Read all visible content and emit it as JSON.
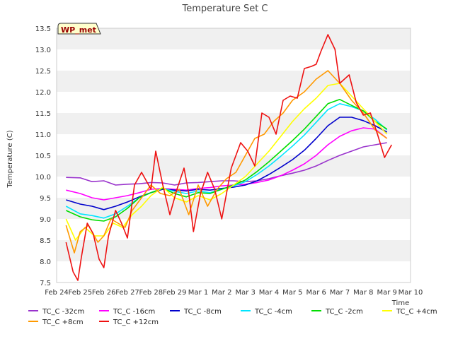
{
  "chart_data": {
    "type": "line",
    "title": "Temperature Set C",
    "xlabel": "Time",
    "ylabel": "Temperature (C)",
    "ylim": [
      7.5,
      13.5
    ],
    "yticks": [
      7.5,
      8.0,
      8.5,
      9.0,
      9.5,
      10.0,
      10.5,
      11.0,
      11.5,
      12.0,
      12.5,
      13.0,
      13.5
    ],
    "xlim": [
      0,
      15
    ],
    "xticks": [
      {
        "x": 0,
        "label": "Feb 24"
      },
      {
        "x": 1,
        "label": "Feb 25"
      },
      {
        "x": 2,
        "label": "Feb 26"
      },
      {
        "x": 3,
        "label": "Feb 27"
      },
      {
        "x": 4,
        "label": "Feb 28"
      },
      {
        "x": 5,
        "label": "Feb 29"
      },
      {
        "x": 6,
        "label": "Mar 1"
      },
      {
        "x": 7,
        "label": "Mar 2"
      },
      {
        "x": 8,
        "label": "Mar 3"
      },
      {
        "x": 9,
        "label": "Mar 4"
      },
      {
        "x": 10,
        "label": "Mar 5"
      },
      {
        "x": 11,
        "label": "Mar 6"
      },
      {
        "x": 12,
        "label": "Mar 7"
      },
      {
        "x": 13,
        "label": "Mar 8"
      },
      {
        "x": 14,
        "label": "Mar 9"
      },
      {
        "x": 15,
        "label": "Mar 10"
      }
    ],
    "annotation": "WP_met",
    "grid": "horizontal bands",
    "legend_position": "bottom",
    "series": [
      {
        "name": "TC_C -32cm",
        "color": "#9933cc",
        "x": [
          0.4,
          1.0,
          1.5,
          2.0,
          2.5,
          3.0,
          3.5,
          4.0,
          4.5,
          5.0,
          5.5,
          6.0,
          6.5,
          7.0,
          7.5,
          8.0,
          8.5,
          9.0,
          9.5,
          10.0,
          10.5,
          11.0,
          11.5,
          12.0,
          12.5,
          13.0,
          13.5,
          14.0
        ],
        "y": [
          9.98,
          9.97,
          9.88,
          9.9,
          9.8,
          9.82,
          9.83,
          9.86,
          9.85,
          9.8,
          9.85,
          9.86,
          9.88,
          9.9,
          9.9,
          9.88,
          9.9,
          9.95,
          10.02,
          10.08,
          10.15,
          10.25,
          10.38,
          10.5,
          10.6,
          10.7,
          10.75,
          10.8
        ]
      },
      {
        "name": "TC_C -16cm",
        "color": "#ff00ff",
        "x": [
          0.4,
          1.0,
          1.5,
          2.0,
          2.5,
          3.0,
          3.5,
          4.0,
          4.5,
          5.0,
          5.5,
          6.0,
          6.5,
          7.0,
          7.5,
          8.0,
          8.5,
          9.0,
          9.5,
          10.0,
          10.5,
          11.0,
          11.5,
          12.0,
          12.5,
          13.0,
          13.5,
          14.0
        ],
        "y": [
          9.68,
          9.6,
          9.5,
          9.45,
          9.5,
          9.55,
          9.62,
          9.7,
          9.72,
          9.7,
          9.68,
          9.72,
          9.74,
          9.78,
          9.8,
          9.82,
          9.86,
          9.92,
          10.02,
          10.15,
          10.3,
          10.5,
          10.75,
          10.95,
          11.08,
          11.15,
          11.12,
          10.9
        ]
      },
      {
        "name": "TC_C -8cm",
        "color": "#0000cc",
        "x": [
          0.4,
          1.0,
          1.5,
          2.0,
          2.5,
          3.0,
          3.5,
          4.0,
          4.5,
          5.0,
          5.5,
          6.0,
          6.5,
          7.0,
          7.5,
          8.0,
          8.5,
          9.0,
          9.5,
          10.0,
          10.5,
          11.0,
          11.5,
          12.0,
          12.5,
          13.0,
          13.5,
          14.0
        ],
        "y": [
          9.45,
          9.35,
          9.3,
          9.22,
          9.3,
          9.4,
          9.52,
          9.62,
          9.7,
          9.68,
          9.66,
          9.7,
          9.68,
          9.72,
          9.75,
          9.8,
          9.9,
          10.05,
          10.22,
          10.4,
          10.62,
          10.9,
          11.2,
          11.4,
          11.4,
          11.32,
          11.2,
          11.05
        ]
      },
      {
        "name": "TC_C -4cm",
        "color": "#00e5ff",
        "x": [
          0.4,
          1.0,
          1.5,
          2.0,
          2.5,
          3.0,
          3.5,
          4.0,
          4.5,
          5.0,
          5.5,
          6.0,
          6.5,
          7.0,
          7.5,
          8.0,
          8.5,
          9.0,
          9.5,
          10.0,
          10.5,
          11.0,
          11.5,
          12.0,
          12.5,
          13.0,
          13.5,
          14.0
        ],
        "y": [
          9.3,
          9.12,
          9.08,
          9.02,
          9.12,
          9.3,
          9.5,
          9.62,
          9.72,
          9.65,
          9.6,
          9.66,
          9.62,
          9.7,
          9.78,
          9.88,
          10.05,
          10.25,
          10.48,
          10.72,
          10.98,
          11.28,
          11.58,
          11.72,
          11.65,
          11.55,
          11.35,
          11.1
        ]
      },
      {
        "name": "TC_C -2cm",
        "color": "#00dd00",
        "x": [
          0.4,
          1.0,
          1.5,
          2.0,
          2.5,
          3.0,
          3.5,
          4.0,
          4.5,
          5.0,
          5.5,
          6.0,
          6.5,
          7.0,
          7.5,
          8.0,
          8.5,
          9.0,
          9.5,
          10.0,
          10.5,
          11.0,
          11.5,
          12.0,
          12.5,
          13.0,
          13.5,
          14.0
        ],
        "y": [
          9.2,
          9.05,
          8.98,
          8.95,
          9.05,
          9.25,
          9.5,
          9.62,
          9.72,
          9.6,
          9.52,
          9.62,
          9.6,
          9.7,
          9.8,
          9.92,
          10.12,
          10.35,
          10.6,
          10.85,
          11.12,
          11.42,
          11.72,
          11.82,
          11.68,
          11.55,
          11.3,
          11.12
        ]
      },
      {
        "name": "TC_C +4cm",
        "color": "#ffff00",
        "x": [
          0.4,
          0.8,
          1.2,
          1.6,
          2.0,
          2.4,
          2.8,
          3.2,
          3.6,
          4.0,
          4.5,
          5.0,
          5.5,
          6.0,
          6.5,
          7.0,
          7.5,
          8.0,
          8.5,
          9.0,
          9.5,
          10.0,
          10.5,
          11.0,
          11.5,
          12.0,
          12.5,
          13.0,
          13.5,
          14.0
        ],
        "y": [
          9.0,
          8.5,
          8.8,
          8.6,
          8.6,
          8.9,
          8.8,
          9.1,
          9.3,
          9.55,
          9.75,
          9.5,
          9.4,
          9.55,
          9.45,
          9.6,
          9.8,
          10.0,
          10.3,
          10.6,
          10.95,
          11.3,
          11.6,
          11.85,
          12.15,
          12.2,
          11.9,
          11.6,
          11.3,
          11.0
        ]
      },
      {
        "name": "TC_C +8cm",
        "color": "#ff9900",
        "x": [
          0.4,
          0.75,
          1.0,
          1.35,
          1.75,
          2.0,
          2.3,
          2.6,
          2.9,
          3.2,
          3.6,
          4.0,
          4.4,
          4.8,
          5.2,
          5.6,
          6.0,
          6.4,
          6.8,
          7.2,
          7.6,
          8.0,
          8.4,
          8.8,
          9.2,
          9.6,
          10.0,
          10.5,
          11.0,
          11.5,
          12.0,
          12.5,
          13.0,
          13.5,
          14.0
        ],
        "y": [
          8.85,
          8.2,
          8.7,
          8.85,
          8.45,
          8.6,
          9.0,
          8.9,
          8.8,
          9.2,
          9.5,
          9.8,
          9.6,
          9.55,
          9.7,
          9.1,
          9.8,
          9.3,
          9.7,
          9.95,
          10.1,
          10.5,
          10.9,
          11.0,
          11.3,
          11.5,
          11.8,
          12.0,
          12.3,
          12.5,
          12.2,
          11.8,
          11.5,
          11.1,
          10.9
        ]
      },
      {
        "name": "TC_C +12cm",
        "color": "#ee1111",
        "x": [
          0.4,
          0.7,
          0.9,
          1.05,
          1.3,
          1.55,
          1.8,
          2.0,
          2.2,
          2.5,
          2.75,
          3.0,
          3.3,
          3.6,
          4.0,
          4.2,
          4.5,
          4.8,
          5.1,
          5.4,
          5.6,
          5.8,
          6.1,
          6.4,
          6.7,
          7.0,
          7.4,
          7.8,
          8.1,
          8.4,
          8.7,
          9.0,
          9.3,
          9.6,
          9.9,
          10.2,
          10.5,
          10.8,
          11.0,
          11.2,
          11.5,
          11.8,
          12.0,
          12.4,
          12.7,
          13.0,
          13.3,
          13.6,
          13.9,
          14.2
        ],
        "y": [
          8.45,
          7.75,
          7.55,
          8.1,
          8.9,
          8.65,
          8.05,
          7.85,
          8.6,
          9.2,
          8.9,
          8.55,
          9.8,
          10.1,
          9.7,
          10.6,
          9.8,
          9.1,
          9.7,
          10.2,
          9.6,
          8.7,
          9.6,
          10.1,
          9.7,
          9.0,
          10.2,
          10.8,
          10.6,
          10.25,
          11.5,
          11.4,
          11.0,
          11.8,
          11.9,
          11.85,
          12.55,
          12.6,
          12.65,
          12.95,
          13.35,
          13.0,
          12.2,
          12.4,
          11.75,
          11.45,
          11.5,
          11.0,
          10.45,
          10.75
        ]
      }
    ]
  }
}
